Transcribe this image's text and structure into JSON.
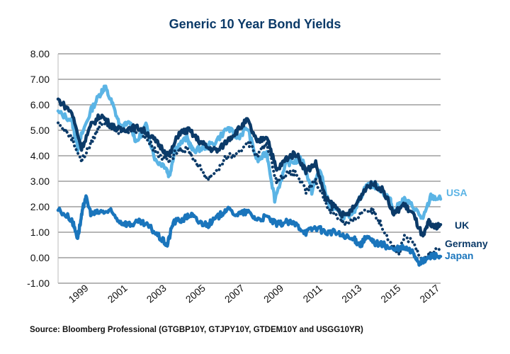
{
  "chart_data": {
    "type": "line",
    "title": "Generic 10 Year Bond Yields",
    "xlabel": "",
    "ylabel": "",
    "xlim": [
      1997.8,
      2017.4
    ],
    "ylim": [
      -1,
      8
    ],
    "grid": true,
    "legend": "right-end labels",
    "yticks": [
      "-1.00",
      "0.00",
      "1.00",
      "2.00",
      "3.00",
      "4.00",
      "5.00",
      "6.00",
      "7.00",
      "8.00"
    ],
    "xticks": [
      "1999",
      "2001",
      "2003",
      "2005",
      "2007",
      "2009",
      "2011",
      "2013",
      "2015",
      "2017"
    ],
    "series": [
      {
        "name": "USA",
        "color": "#5bb4e5",
        "style": "solid",
        "x": [
          1997.8,
          1998.5,
          1998.8,
          1999.0,
          1999.5,
          2000.0,
          2000.2,
          2000.6,
          2001.0,
          2001.5,
          2001.8,
          2002.3,
          2002.8,
          2003.3,
          2003.5,
          2003.8,
          2004.4,
          2004.7,
          2005.2,
          2005.8,
          2006.5,
          2007.0,
          2007.5,
          2008.0,
          2008.5,
          2008.9,
          2009.5,
          2010.0,
          2010.3,
          2010.8,
          2011.2,
          2011.7,
          2012.3,
          2012.6,
          2013.0,
          2013.5,
          2013.8,
          2014.3,
          2014.8,
          2015.0,
          2015.5,
          2016.0,
          2016.5,
          2016.9,
          2017.4
        ],
        "y": [
          5.7,
          5.4,
          4.3,
          4.8,
          5.8,
          6.5,
          6.7,
          6.0,
          5.1,
          5.3,
          4.5,
          5.2,
          3.8,
          3.6,
          3.2,
          4.3,
          4.7,
          4.2,
          4.3,
          4.5,
          5.1,
          4.7,
          5.1,
          3.8,
          4.1,
          2.3,
          3.7,
          3.8,
          3.9,
          2.6,
          3.5,
          2.0,
          1.7,
          1.6,
          1.9,
          2.7,
          2.9,
          2.7,
          2.3,
          1.8,
          2.3,
          2.0,
          1.5,
          2.4,
          2.3
        ]
      },
      {
        "name": "UK",
        "color": "#0b3a68",
        "style": "solid",
        "x": [
          1997.8,
          1998.5,
          1999.0,
          1999.5,
          2000.0,
          2000.5,
          2001.0,
          2001.5,
          2002.0,
          2002.5,
          2003.0,
          2003.5,
          2004.0,
          2004.5,
          2005.0,
          2005.5,
          2006.0,
          2006.6,
          2007.0,
          2007.5,
          2008.0,
          2008.5,
          2009.0,
          2009.5,
          2010.0,
          2010.5,
          2011.0,
          2011.5,
          2012.0,
          2012.5,
          2013.0,
          2013.6,
          2014.0,
          2014.5,
          2015.0,
          2015.5,
          2016.0,
          2016.5,
          2016.8,
          2017.0,
          2017.4
        ],
        "y": [
          6.2,
          5.7,
          4.3,
          5.2,
          5.6,
          5.2,
          5.0,
          5.1,
          5.1,
          4.8,
          4.4,
          4.0,
          4.9,
          5.0,
          4.6,
          4.3,
          4.2,
          4.7,
          5.0,
          5.4,
          4.5,
          4.8,
          3.4,
          3.9,
          4.1,
          3.4,
          3.7,
          2.3,
          2.0,
          1.6,
          2.0,
          2.8,
          2.9,
          2.6,
          1.7,
          2.1,
          1.7,
          0.8,
          1.4,
          1.2,
          1.3
        ]
      },
      {
        "name": "Germany",
        "color": "#0b3a68",
        "style": "dotted",
        "x": [
          1997.8,
          1998.5,
          1999.0,
          1999.5,
          2000.0,
          2000.5,
          2001.0,
          2001.5,
          2002.0,
          2002.5,
          2003.0,
          2003.5,
          2004.0,
          2004.5,
          2005.0,
          2005.5,
          2006.0,
          2006.5,
          2007.0,
          2007.5,
          2008.0,
          2008.5,
          2009.0,
          2009.5,
          2010.0,
          2010.5,
          2011.0,
          2011.7,
          2012.3,
          2012.6,
          2013.0,
          2013.5,
          2014.0,
          2014.5,
          2015.0,
          2015.3,
          2015.5,
          2016.0,
          2016.5,
          2016.9,
          2017.4
        ],
        "y": [
          5.3,
          4.7,
          3.8,
          4.5,
          5.3,
          5.2,
          4.9,
          5.0,
          5.0,
          4.5,
          4.0,
          3.8,
          4.3,
          4.2,
          3.6,
          3.1,
          3.5,
          4.0,
          4.0,
          4.6,
          4.0,
          4.5,
          3.0,
          3.3,
          3.3,
          2.6,
          3.0,
          1.9,
          1.5,
          1.3,
          1.5,
          1.9,
          1.8,
          1.1,
          0.4,
          0.1,
          0.8,
          0.6,
          -0.1,
          0.2,
          0.4
        ]
      },
      {
        "name": "Japan",
        "color": "#1a75bc",
        "style": "solid",
        "x": [
          1997.8,
          1998.5,
          1998.8,
          1999.0,
          1999.2,
          1999.5,
          2000.0,
          2000.5,
          2001.0,
          2001.5,
          2002.0,
          2002.5,
          2003.0,
          2003.4,
          2003.7,
          2004.2,
          2004.6,
          2005.0,
          2005.5,
          2006.0,
          2006.4,
          2007.0,
          2007.5,
          2008.0,
          2008.5,
          2009.0,
          2009.5,
          2010.0,
          2010.5,
          2011.0,
          2011.5,
          2012.0,
          2012.5,
          2013.0,
          2013.3,
          2013.6,
          2014.0,
          2014.5,
          2015.0,
          2015.5,
          2016.0,
          2016.3,
          2016.6,
          2017.0,
          2017.4
        ],
        "y": [
          1.9,
          1.5,
          0.8,
          1.6,
          2.4,
          1.7,
          1.8,
          1.8,
          1.4,
          1.3,
          1.4,
          1.2,
          0.8,
          0.5,
          1.4,
          1.5,
          1.7,
          1.4,
          1.3,
          1.6,
          1.9,
          1.7,
          1.8,
          1.5,
          1.6,
          1.3,
          1.4,
          1.3,
          1.0,
          1.2,
          1.0,
          1.0,
          0.8,
          0.7,
          0.5,
          0.8,
          0.6,
          0.5,
          0.3,
          0.4,
          0.2,
          -0.2,
          -0.1,
          0.1,
          0.05
        ]
      }
    ]
  },
  "source": "Source: Bloomberg Professional (GTGBP10Y, GTJPY10Y, GTDEM10Y and USGG10YR)"
}
